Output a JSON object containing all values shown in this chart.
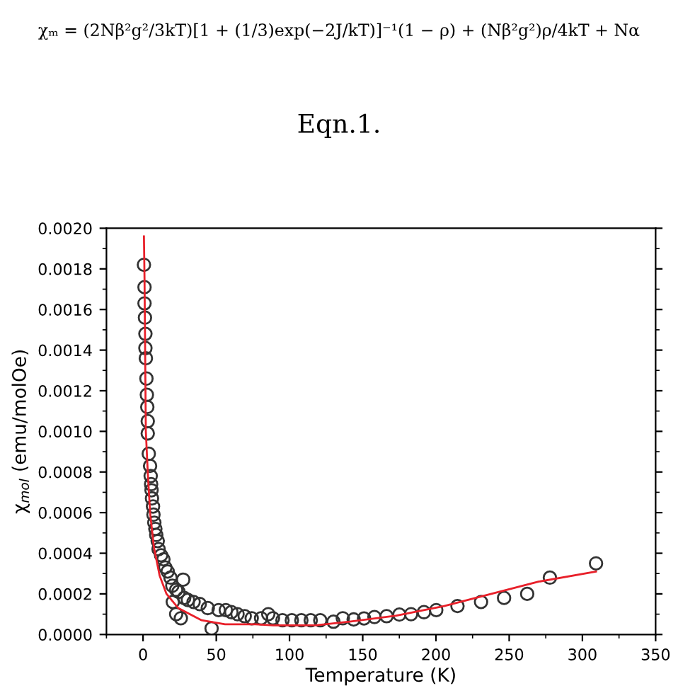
{
  "chart_data": {
    "type": "scatter",
    "xlabel": "Temperature (K)",
    "ylabel": "χ$_{mol}$ (emu/molOe)",
    "annotations": [
      "χₘ = (2Nβ²g²/3kT)[1 + (1/3)exp(−2J/kT)]⁻¹(1 − ρ) + (Nβ²g²)ρ/4kT + Nα",
      "Eqn.1."
    ],
    "xlim": [
      -25,
      350
    ],
    "xticks": [
      0,
      50,
      100,
      150,
      200,
      250,
      300,
      350
    ],
    "ylim": [
      0,
      0.002
    ],
    "yticks": [
      {
        "value": 0,
        "label": "0.0000"
      },
      {
        "value": 0.0002,
        "label": "0.0002"
      },
      {
        "value": 0.0004,
        "label": "0.0004"
      },
      {
        "value": 0.0006,
        "label": "0.0006"
      },
      {
        "value": 0.0008,
        "label": "0.0008"
      },
      {
        "value": 0.001,
        "label": "0.0010"
      },
      {
        "value": 0.0012,
        "label": "0.0012"
      },
      {
        "value": 0.0014,
        "label": "0.0014"
      },
      {
        "value": 0.0016,
        "label": "0.0016"
      },
      {
        "value": 0.0018,
        "label": "0.0018"
      },
      {
        "value": 0.002,
        "label": "0.0020"
      }
    ],
    "grid": false,
    "legend": false,
    "series": [
      {
        "marker": "circle",
        "color": "#333333",
        "x": [
          0.6,
          1,
          1,
          1.3,
          1.6,
          1.6,
          1.9,
          2.3,
          2.6,
          2.9,
          3.2,
          3.2,
          3.9,
          4.8,
          5.2,
          5.5,
          5.8,
          6.1,
          6.8,
          7.1,
          7.7,
          8.4,
          9,
          10,
          10.6,
          12.3,
          13.9,
          15.2,
          16.8,
          18.7,
          20,
          22.6,
          24.2,
          27.4,
          20.3,
          22.6,
          25.8,
          28.1,
          30.6,
          34.5,
          38.7,
          44.2,
          46.8,
          51.6,
          56.5,
          60.3,
          64.5,
          69.4,
          74.2,
          80.6,
          85.5,
          88.7,
          95.2,
          101.6,
          108.1,
          114.5,
          121,
          130,
          136.4,
          143.8,
          150.9,
          158,
          166.3,
          175,
          183,
          191.8,
          200.2,
          214.7,
          230.8,
          246.5,
          262.3,
          277.8,
          309.3
        ],
        "values": [
          0.00182,
          0.00171,
          0.00163,
          0.00156,
          0.00148,
          0.00141,
          0.00136,
          0.00126,
          0.00118,
          0.00112,
          0.00105,
          0.00099,
          0.00089,
          0.00083,
          0.00078,
          0.00074,
          0.00071,
          0.00067,
          0.00063,
          0.00059,
          0.00055,
          0.00052,
          0.00049,
          0.00046,
          0.00042,
          0.00039,
          0.00037,
          0.00033,
          0.00031,
          0.00028,
          0.00024,
          0.00022,
          0.00021,
          0.00027,
          0.00016,
          0.0001,
          8e-05,
          0.00018,
          0.00017,
          0.00016,
          0.00015,
          0.00013,
          3e-05,
          0.00012,
          0.00012,
          0.00011,
          0.0001,
          9e-05,
          8e-05,
          8e-05,
          0.0001,
          8e-05,
          7e-05,
          7e-05,
          7e-05,
          7e-05,
          7e-05,
          6.3e-05,
          8e-05,
          7.4e-05,
          7.9e-05,
          8.6e-05,
          9e-05,
          9.8e-05,
          0.0001,
          0.00011,
          0.00012,
          0.00014,
          0.00016,
          0.00018,
          0.0002,
          0.00028,
          0.00035
        ]
      },
      {
        "type": "line",
        "marker": "none",
        "line_style": "solid",
        "color": "#e8202a",
        "x": [
          0.6,
          1,
          1.9,
          3.2,
          4.8,
          7.4,
          11.3,
          16,
          24,
          40,
          56,
          76.8,
          89,
          105,
          118.7,
          141,
          173,
          205.6,
          237.8,
          270,
          309.3
        ],
        "values": [
          0.00196,
          0.00175,
          0.001,
          0.0008,
          0.0006,
          0.00043,
          0.00029,
          0.0002,
          0.00013,
          7e-05,
          5e-05,
          5e-05,
          4.5e-05,
          4.5e-05,
          4.6e-05,
          6.3e-05,
          9.3e-05,
          0.00014,
          0.0002,
          0.00026,
          0.00031
        ]
      }
    ]
  }
}
